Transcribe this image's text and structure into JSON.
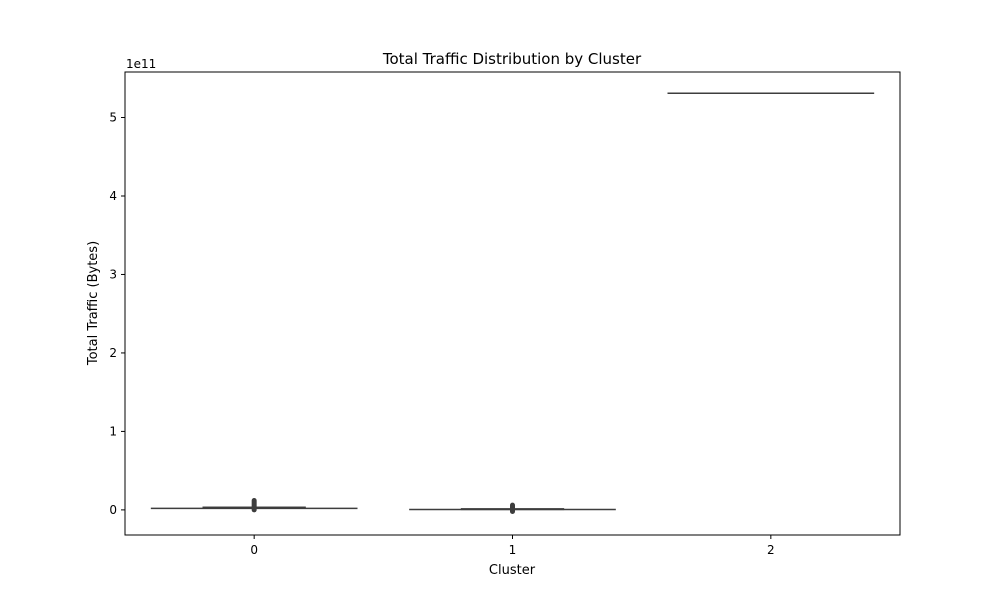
{
  "chart_data": {
    "type": "violin",
    "title": "Total Traffic Distribution by Cluster",
    "xlabel": "Cluster",
    "ylabel": "Total Traffic (Bytes)",
    "y_offset_text": "1e11",
    "y_scale_factor": 100000000000,
    "ylim": [
      -32000000000.0,
      558000000000.0
    ],
    "categories": [
      "0",
      "1",
      "2"
    ],
    "y_ticks": [
      0,
      100000000000.0,
      200000000000.0,
      300000000000.0,
      400000000000.0,
      500000000000.0
    ],
    "y_tick_labels": [
      "0",
      "1",
      "2",
      "3",
      "4",
      "5"
    ],
    "series": [
      {
        "category": "0",
        "min": 0,
        "q1": 1000000000.0,
        "median": 2000000000.0,
        "q3": 3000000000.0,
        "max": 12000000000.0,
        "violin_value": 2000000000.0
      },
      {
        "category": "1",
        "min": -2000000000.0,
        "q1": 0,
        "median": 500000000.0,
        "q3": 1000000000.0,
        "max": 6000000000.0,
        "violin_value": 500000000.0
      },
      {
        "category": "2",
        "min": 531000000000.0,
        "q1": 531000000000.0,
        "median": 531000000000.0,
        "q3": 531000000000.0,
        "max": 531000000000.0,
        "violin_value": 531000000000.0
      }
    ],
    "grid": false,
    "colors": {
      "violin": "#3d3d3d",
      "box": "#3d3d3d",
      "axes": "#000000"
    }
  }
}
